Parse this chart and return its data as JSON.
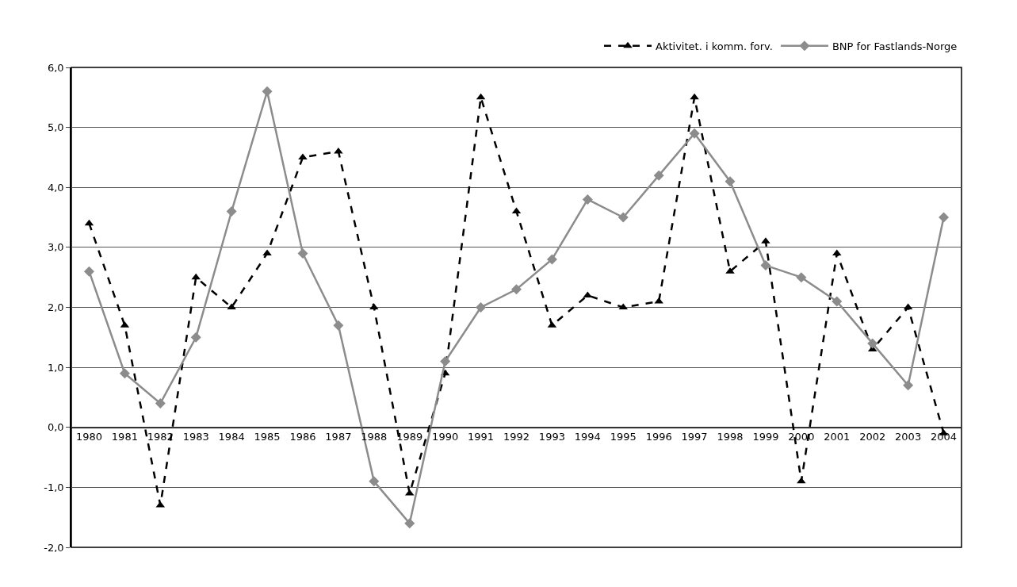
{
  "chart_data": {
    "type": "line",
    "categories": [
      "1980",
      "1981",
      "1982",
      "1983",
      "1984",
      "1985",
      "1986",
      "1987",
      "1988",
      "1989",
      "1990",
      "1991",
      "1992",
      "1993",
      "1994",
      "1995",
      "1996",
      "1997",
      "1998",
      "1999",
      "2000",
      "2001",
      "2002",
      "2003",
      "2004"
    ],
    "series": [
      {
        "name": "Aktivitet. i komm. forv.",
        "color": "#000000",
        "marker": "triangle",
        "line_style": "dashed",
        "values": [
          3.4,
          1.7,
          -1.3,
          2.5,
          2.0,
          2.9,
          4.5,
          4.6,
          2.0,
          -1.1,
          0.9,
          5.5,
          3.6,
          1.7,
          2.2,
          2.0,
          2.1,
          5.5,
          2.6,
          3.1,
          -0.9,
          2.9,
          1.3,
          2.0,
          -0.1
        ]
      },
      {
        "name": "BNP for Fastlands-Norge",
        "color": "#8c8c8c",
        "marker": "diamond",
        "line_style": "solid",
        "values": [
          2.6,
          0.9,
          0.4,
          1.5,
          3.6,
          5.6,
          2.9,
          1.7,
          -0.9,
          -1.6,
          1.1,
          2.0,
          2.3,
          2.8,
          3.8,
          3.5,
          4.2,
          4.9,
          4.1,
          2.7,
          2.5,
          2.1,
          1.4,
          0.7,
          3.5
        ]
      }
    ],
    "ylim": [
      -2,
      6
    ],
    "yticks": [
      {
        "value": -2,
        "label": "-2,0"
      },
      {
        "value": -1,
        "label": "-1,0"
      },
      {
        "value": 0,
        "label": "0,0"
      },
      {
        "value": 1,
        "label": "1,0"
      },
      {
        "value": 2,
        "label": "2,0"
      },
      {
        "value": 3,
        "label": "3,0"
      },
      {
        "value": 4,
        "label": "4,0"
      },
      {
        "value": 5,
        "label": "5,0"
      },
      {
        "value": 6,
        "label": "6,0"
      }
    ],
    "grid": "y",
    "legend": "top right"
  }
}
